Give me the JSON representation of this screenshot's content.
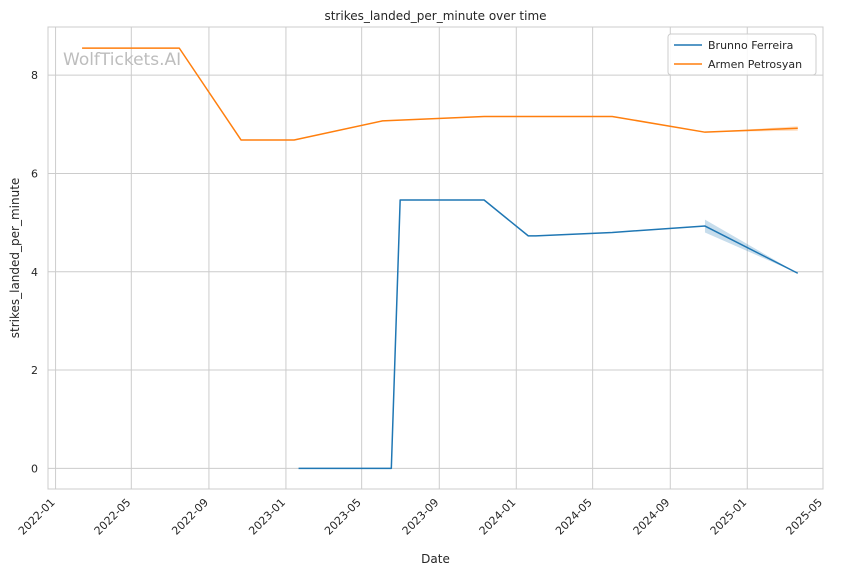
{
  "chart_data": {
    "type": "line",
    "title": "strikes_landed_per_minute over time",
    "xlabel": "Date",
    "ylabel": "strikes_landed_per_minute",
    "watermark": "WolfTickets.AI",
    "x_ticks": [
      "2022-01",
      "2022-05",
      "2022-09",
      "2023-01",
      "2023-05",
      "2023-09",
      "2024-01",
      "2024-05",
      "2024-09",
      "2025-01",
      "2025-05"
    ],
    "y_ticks": [
      0,
      2,
      4,
      6,
      8
    ],
    "xlim": [
      "2021-12-20",
      "2025-05-01"
    ],
    "ylim": [
      -0.42,
      8.98
    ],
    "grid": true,
    "legend_position": "top-right",
    "series": [
      {
        "name": "Brunno Ferreira",
        "color": "#1f77b4",
        "points": [
          {
            "x": "2023-01-21",
            "y": 0.0
          },
          {
            "x": "2023-06-17",
            "y": 0.0
          },
          {
            "x": "2023-07-01",
            "y": 5.46
          },
          {
            "x": "2023-11-11",
            "y": 5.46
          },
          {
            "x": "2024-01-20",
            "y": 4.73
          },
          {
            "x": "2024-02-01",
            "y": 4.73
          },
          {
            "x": "2024-06-01",
            "y": 4.8
          },
          {
            "x": "2024-10-26",
            "y": 4.93
          },
          {
            "x": "2025-03-22",
            "y": 3.97
          }
        ],
        "band": [
          {
            "x": "2024-10-26",
            "low": 4.8,
            "high": 5.06
          },
          {
            "x": "2025-03-22",
            "low": 3.97,
            "high": 3.97
          }
        ]
      },
      {
        "name": "Armen Petrosyan",
        "color": "#ff7f0e",
        "points": [
          {
            "x": "2022-02-12",
            "y": 8.55
          },
          {
            "x": "2022-07-16",
            "y": 8.55
          },
          {
            "x": "2022-10-22",
            "y": 6.68
          },
          {
            "x": "2023-01-14",
            "y": 6.68
          },
          {
            "x": "2023-06-03",
            "y": 7.07
          },
          {
            "x": "2023-11-11",
            "y": 7.16
          },
          {
            "x": "2024-06-01",
            "y": 7.16
          },
          {
            "x": "2024-10-26",
            "y": 6.84
          },
          {
            "x": "2025-03-22",
            "y": 6.92
          }
        ],
        "band": [
          {
            "x": "2024-10-26",
            "low": 6.84,
            "high": 6.84
          },
          {
            "x": "2025-03-22",
            "low": 6.87,
            "high": 6.96
          }
        ]
      }
    ]
  }
}
